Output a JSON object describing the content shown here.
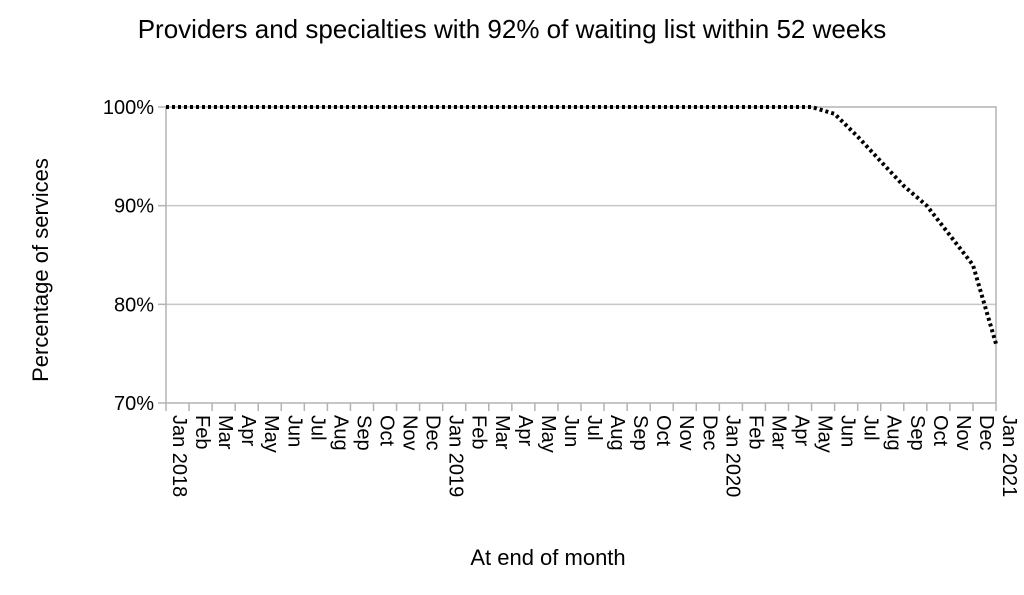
{
  "chart_data": {
    "type": "line",
    "title": "Providers and specialties with 92% of waiting list within 52 weeks",
    "xlabel": "At end of month",
    "ylabel": "Percentage of services",
    "ylim": [
      70,
      100
    ],
    "yticks": [
      "70%",
      "80%",
      "90%",
      "100%"
    ],
    "grid": true,
    "legend": "none",
    "line_style": "dotted",
    "line_color": "#000000",
    "categories": [
      "Jan 2018",
      "Feb",
      "Mar",
      "Apr",
      "May",
      "Jun",
      "Jul",
      "Aug",
      "Sep",
      "Oct",
      "Nov",
      "Dec",
      "Jan 2019",
      "Feb",
      "Mar",
      "Apr",
      "May",
      "Jun",
      "Jul",
      "Aug",
      "Sep",
      "Oct",
      "Nov",
      "Dec",
      "Jan 2020",
      "Feb",
      "Mar",
      "Apr",
      "May",
      "Jun",
      "Jul",
      "Aug",
      "Sep",
      "Oct",
      "Nov",
      "Dec",
      "Jan 2021"
    ],
    "series": [
      {
        "values": [
          100,
          100,
          100,
          100,
          100,
          100,
          100,
          100,
          100,
          100,
          100,
          100,
          100,
          100,
          100,
          100,
          100,
          100,
          100,
          100,
          100,
          100,
          100,
          100,
          100,
          100,
          100,
          100,
          100,
          99.3,
          97,
          94.5,
          92,
          90,
          87,
          84,
          76
        ]
      }
    ]
  }
}
